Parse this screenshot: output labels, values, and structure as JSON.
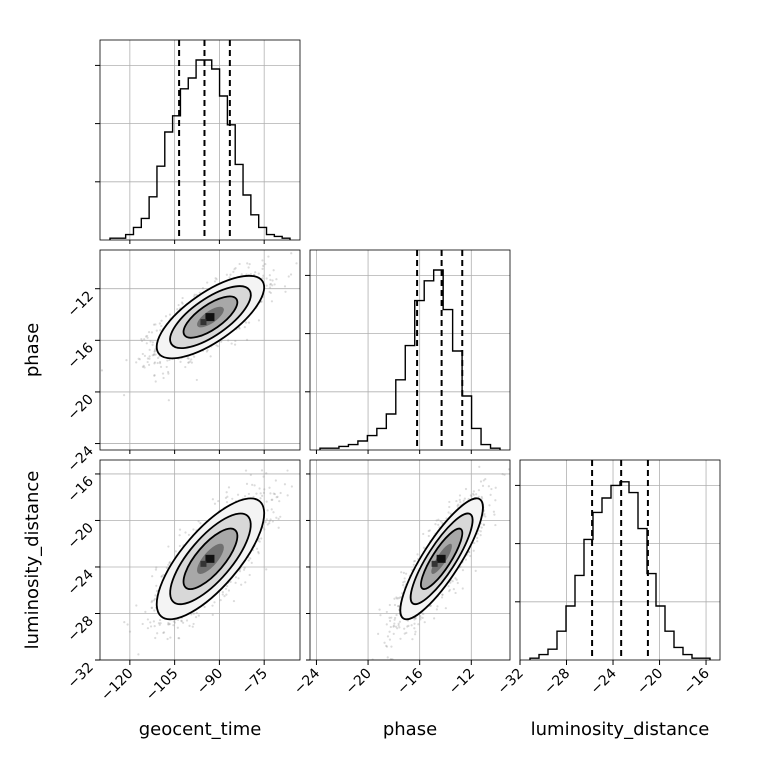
{
  "chart_data": {
    "type": "corner",
    "parameters": [
      {
        "name": "geocent_time",
        "range": [
          -130,
          -63
        ],
        "ticks": [
          -120,
          -105,
          -90,
          -75
        ],
        "quantiles": [
          -103.5,
          -95,
          -86.5
        ],
        "hist": [
          0.01,
          0.01,
          0.03,
          0.07,
          0.12,
          0.24,
          0.41,
          0.6,
          0.69,
          0.84,
          0.9,
          1.0,
          1.0,
          0.95,
          0.8,
          0.64,
          0.42,
          0.25,
          0.14,
          0.07,
          0.03,
          0.02,
          0.01
        ]
      },
      {
        "name": "phase",
        "range": [
          -24.5,
          -9
        ],
        "ticks": [
          -24,
          -20,
          -16,
          -12
        ],
        "quantiles": [
          -16.2,
          -14.3,
          -12.7
        ],
        "hist": [
          0.01,
          0.01,
          0.02,
          0.03,
          0.05,
          0.08,
          0.12,
          0.2,
          0.39,
          0.58,
          0.83,
          0.94,
          1.0,
          0.78,
          0.55,
          0.3,
          0.12,
          0.03,
          0.01
        ]
      },
      {
        "name": "luminosity_distance",
        "range": [
          -32,
          -14.8
        ],
        "ticks": [
          -32,
          -28,
          -24,
          -20,
          -16
        ],
        "quantiles": [
          -25.8,
          -23.3,
          -21
        ],
        "hist": [
          0.01,
          0.03,
          0.06,
          0.16,
          0.3,
          0.47,
          0.67,
          0.82,
          0.9,
          0.97,
          0.99,
          0.93,
          0.73,
          0.48,
          0.3,
          0.16,
          0.07,
          0.03,
          0.01,
          0.01
        ]
      }
    ],
    "pairs": [
      {
        "x": "geocent_time",
        "y": "phase",
        "mean": [
          -93,
          -14.2
        ],
        "sd": [
          9,
          1.6
        ],
        "corr": 0.72
      },
      {
        "x": "geocent_time",
        "y": "luminosity_distance",
        "mean": [
          -93,
          -23.3
        ],
        "sd": [
          9,
          2.6
        ],
        "corr": 0.75
      },
      {
        "x": "phase",
        "y": "luminosity_distance",
        "mean": [
          -14.3,
          -23.3
        ],
        "sd": [
          1.6,
          2.6
        ],
        "corr": 0.85
      }
    ],
    "grid": true
  }
}
